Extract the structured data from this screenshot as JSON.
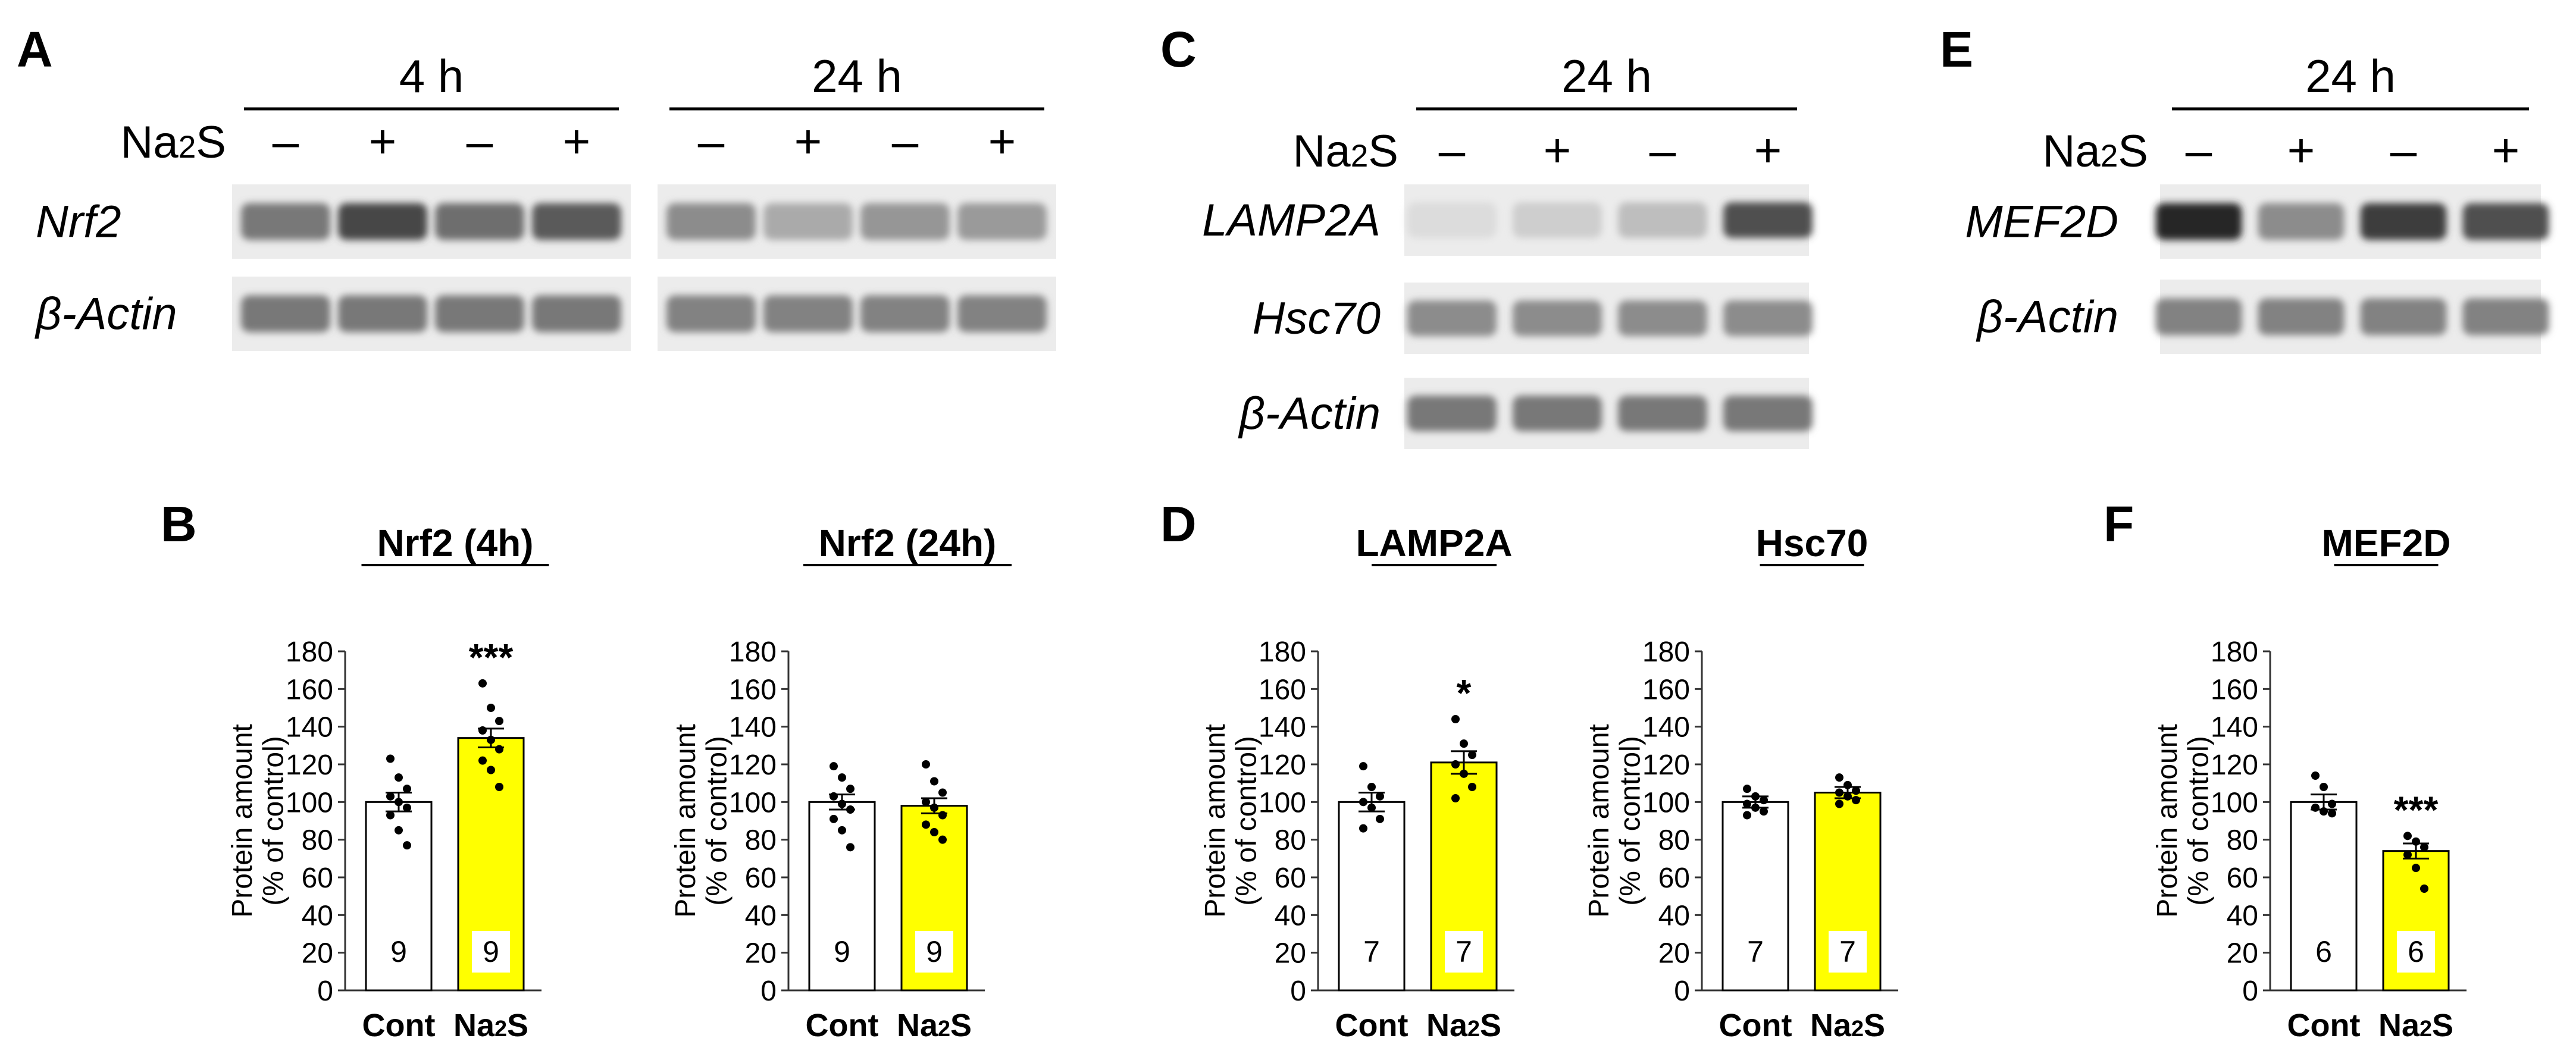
{
  "panels": {
    "A": {
      "letter": "A",
      "treatment_label": "Na2S",
      "groups": [
        {
          "time": "4 h",
          "lanes": [
            "–",
            "+",
            "–",
            "+"
          ]
        },
        {
          "time": "24 h",
          "lanes": [
            "–",
            "+",
            "–",
            "+"
          ]
        }
      ],
      "blots": [
        {
          "label": "Nrf2",
          "intensity": [
            0.55,
            0.8,
            0.6,
            0.7,
            0.45,
            0.3,
            0.4,
            0.38
          ]
        },
        {
          "label": "β-Actin",
          "intensity": [
            0.55,
            0.55,
            0.55,
            0.55,
            0.5,
            0.5,
            0.5,
            0.5
          ]
        }
      ]
    },
    "C": {
      "letter": "C",
      "treatment_label": "Na2S",
      "groups": [
        {
          "time": "24 h",
          "lanes": [
            "–",
            "+",
            "–",
            "+"
          ]
        }
      ],
      "blots": [
        {
          "label": "LAMP2A",
          "intensity": [
            0.05,
            0.12,
            0.2,
            0.75
          ]
        },
        {
          "label": "Hsc70",
          "intensity": [
            0.45,
            0.45,
            0.45,
            0.45
          ]
        },
        {
          "label": "β-Actin",
          "intensity": [
            0.55,
            0.55,
            0.55,
            0.55
          ]
        }
      ]
    },
    "E": {
      "letter": "E",
      "treatment_label": "Na2S",
      "groups": [
        {
          "time": "24 h",
          "lanes": [
            "–",
            "+",
            "–",
            "+"
          ]
        }
      ],
      "blots": [
        {
          "label": "MEF2D",
          "intensity": [
            0.95,
            0.45,
            0.85,
            0.75
          ]
        },
        {
          "label": "β-Actin",
          "intensity": [
            0.5,
            0.5,
            0.5,
            0.5
          ]
        }
      ]
    },
    "B": {
      "letter": "B"
    },
    "D": {
      "letter": "D"
    },
    "F": {
      "letter": "F"
    }
  },
  "colors": {
    "control_bar": "#ffffff",
    "treatment_bar": "#ffff00",
    "bar_edge": "#000000"
  },
  "chart_data": [
    {
      "type": "bar",
      "panel": "B",
      "title": "Nrf2 (4h)",
      "categories": [
        "Cont",
        "Na2S"
      ],
      "values": [
        100,
        134
      ],
      "errors": [
        5,
        5
      ],
      "n": [
        "9",
        "9"
      ],
      "significance": [
        "",
        "***"
      ],
      "points": [
        [
          123,
          113,
          107,
          103,
          100,
          97,
          93,
          85,
          77
        ],
        [
          163,
          150,
          143,
          138,
          133,
          128,
          122,
          117,
          108
        ]
      ],
      "ylabel": "Protein amount\n(% of control)",
      "yticks": [
        0,
        20,
        40,
        60,
        80,
        100,
        120,
        140,
        160,
        180
      ],
      "ylim": [
        0,
        180
      ]
    },
    {
      "type": "bar",
      "panel": "B",
      "title": "Nrf2 (24h)",
      "categories": [
        "Cont",
        "Na2S"
      ],
      "values": [
        100,
        98
      ],
      "errors": [
        4,
        4
      ],
      "n": [
        "9",
        "9"
      ],
      "significance": [
        "",
        ""
      ],
      "points": [
        [
          119,
          113,
          107,
          103,
          99,
          96,
          91,
          85,
          76
        ],
        [
          120,
          111,
          105,
          100,
          97,
          93,
          88,
          84,
          80
        ]
      ],
      "ylabel": "Protein amount\n(% of control)",
      "yticks": [
        0,
        20,
        40,
        60,
        80,
        100,
        120,
        140,
        160,
        180
      ],
      "ylim": [
        0,
        180
      ]
    },
    {
      "type": "bar",
      "panel": "D",
      "title": "LAMP2A",
      "categories": [
        "Cont",
        "Na2S"
      ],
      "values": [
        100,
        121
      ],
      "errors": [
        5,
        6
      ],
      "n": [
        "7",
        "7"
      ],
      "significance": [
        "",
        "*"
      ],
      "points": [
        [
          119,
          108,
          103,
          100,
          97,
          91,
          86
        ],
        [
          144,
          131,
          125,
          120,
          115,
          108,
          102
        ]
      ],
      "ylabel": "Protein amount\n(% of control)",
      "yticks": [
        0,
        20,
        40,
        60,
        80,
        100,
        120,
        140,
        160,
        180
      ],
      "ylim": [
        0,
        180
      ]
    },
    {
      "type": "bar",
      "panel": "D",
      "title": "Hsc70",
      "categories": [
        "Cont",
        "Na2S"
      ],
      "values": [
        100,
        105
      ],
      "errors": [
        3,
        3
      ],
      "n": [
        "7",
        "7"
      ],
      "significance": [
        "",
        ""
      ],
      "points": [
        [
          107,
          103,
          101,
          99,
          97,
          95,
          93
        ],
        [
          113,
          109,
          106,
          105,
          103,
          101,
          99
        ]
      ],
      "ylabel": "Protein amount\n(% of control)",
      "yticks": [
        0,
        20,
        40,
        60,
        80,
        100,
        120,
        140,
        160,
        180
      ],
      "ylim": [
        0,
        180
      ]
    },
    {
      "type": "bar",
      "panel": "F",
      "title": "MEF2D",
      "categories": [
        "Cont",
        "Na2S"
      ],
      "values": [
        100,
        74
      ],
      "errors": [
        4,
        4
      ],
      "n": [
        "6",
        "6"
      ],
      "significance": [
        "",
        "***"
      ],
      "points": [
        [
          114,
          108,
          99,
          97,
          95,
          94
        ],
        [
          82,
          79,
          76,
          72,
          65,
          54
        ]
      ],
      "ylabel": "Protein amount\n(% of control)",
      "yticks": [
        0,
        20,
        40,
        60,
        80,
        100,
        120,
        140,
        160,
        180
      ],
      "ylim": [
        0,
        180
      ]
    }
  ]
}
